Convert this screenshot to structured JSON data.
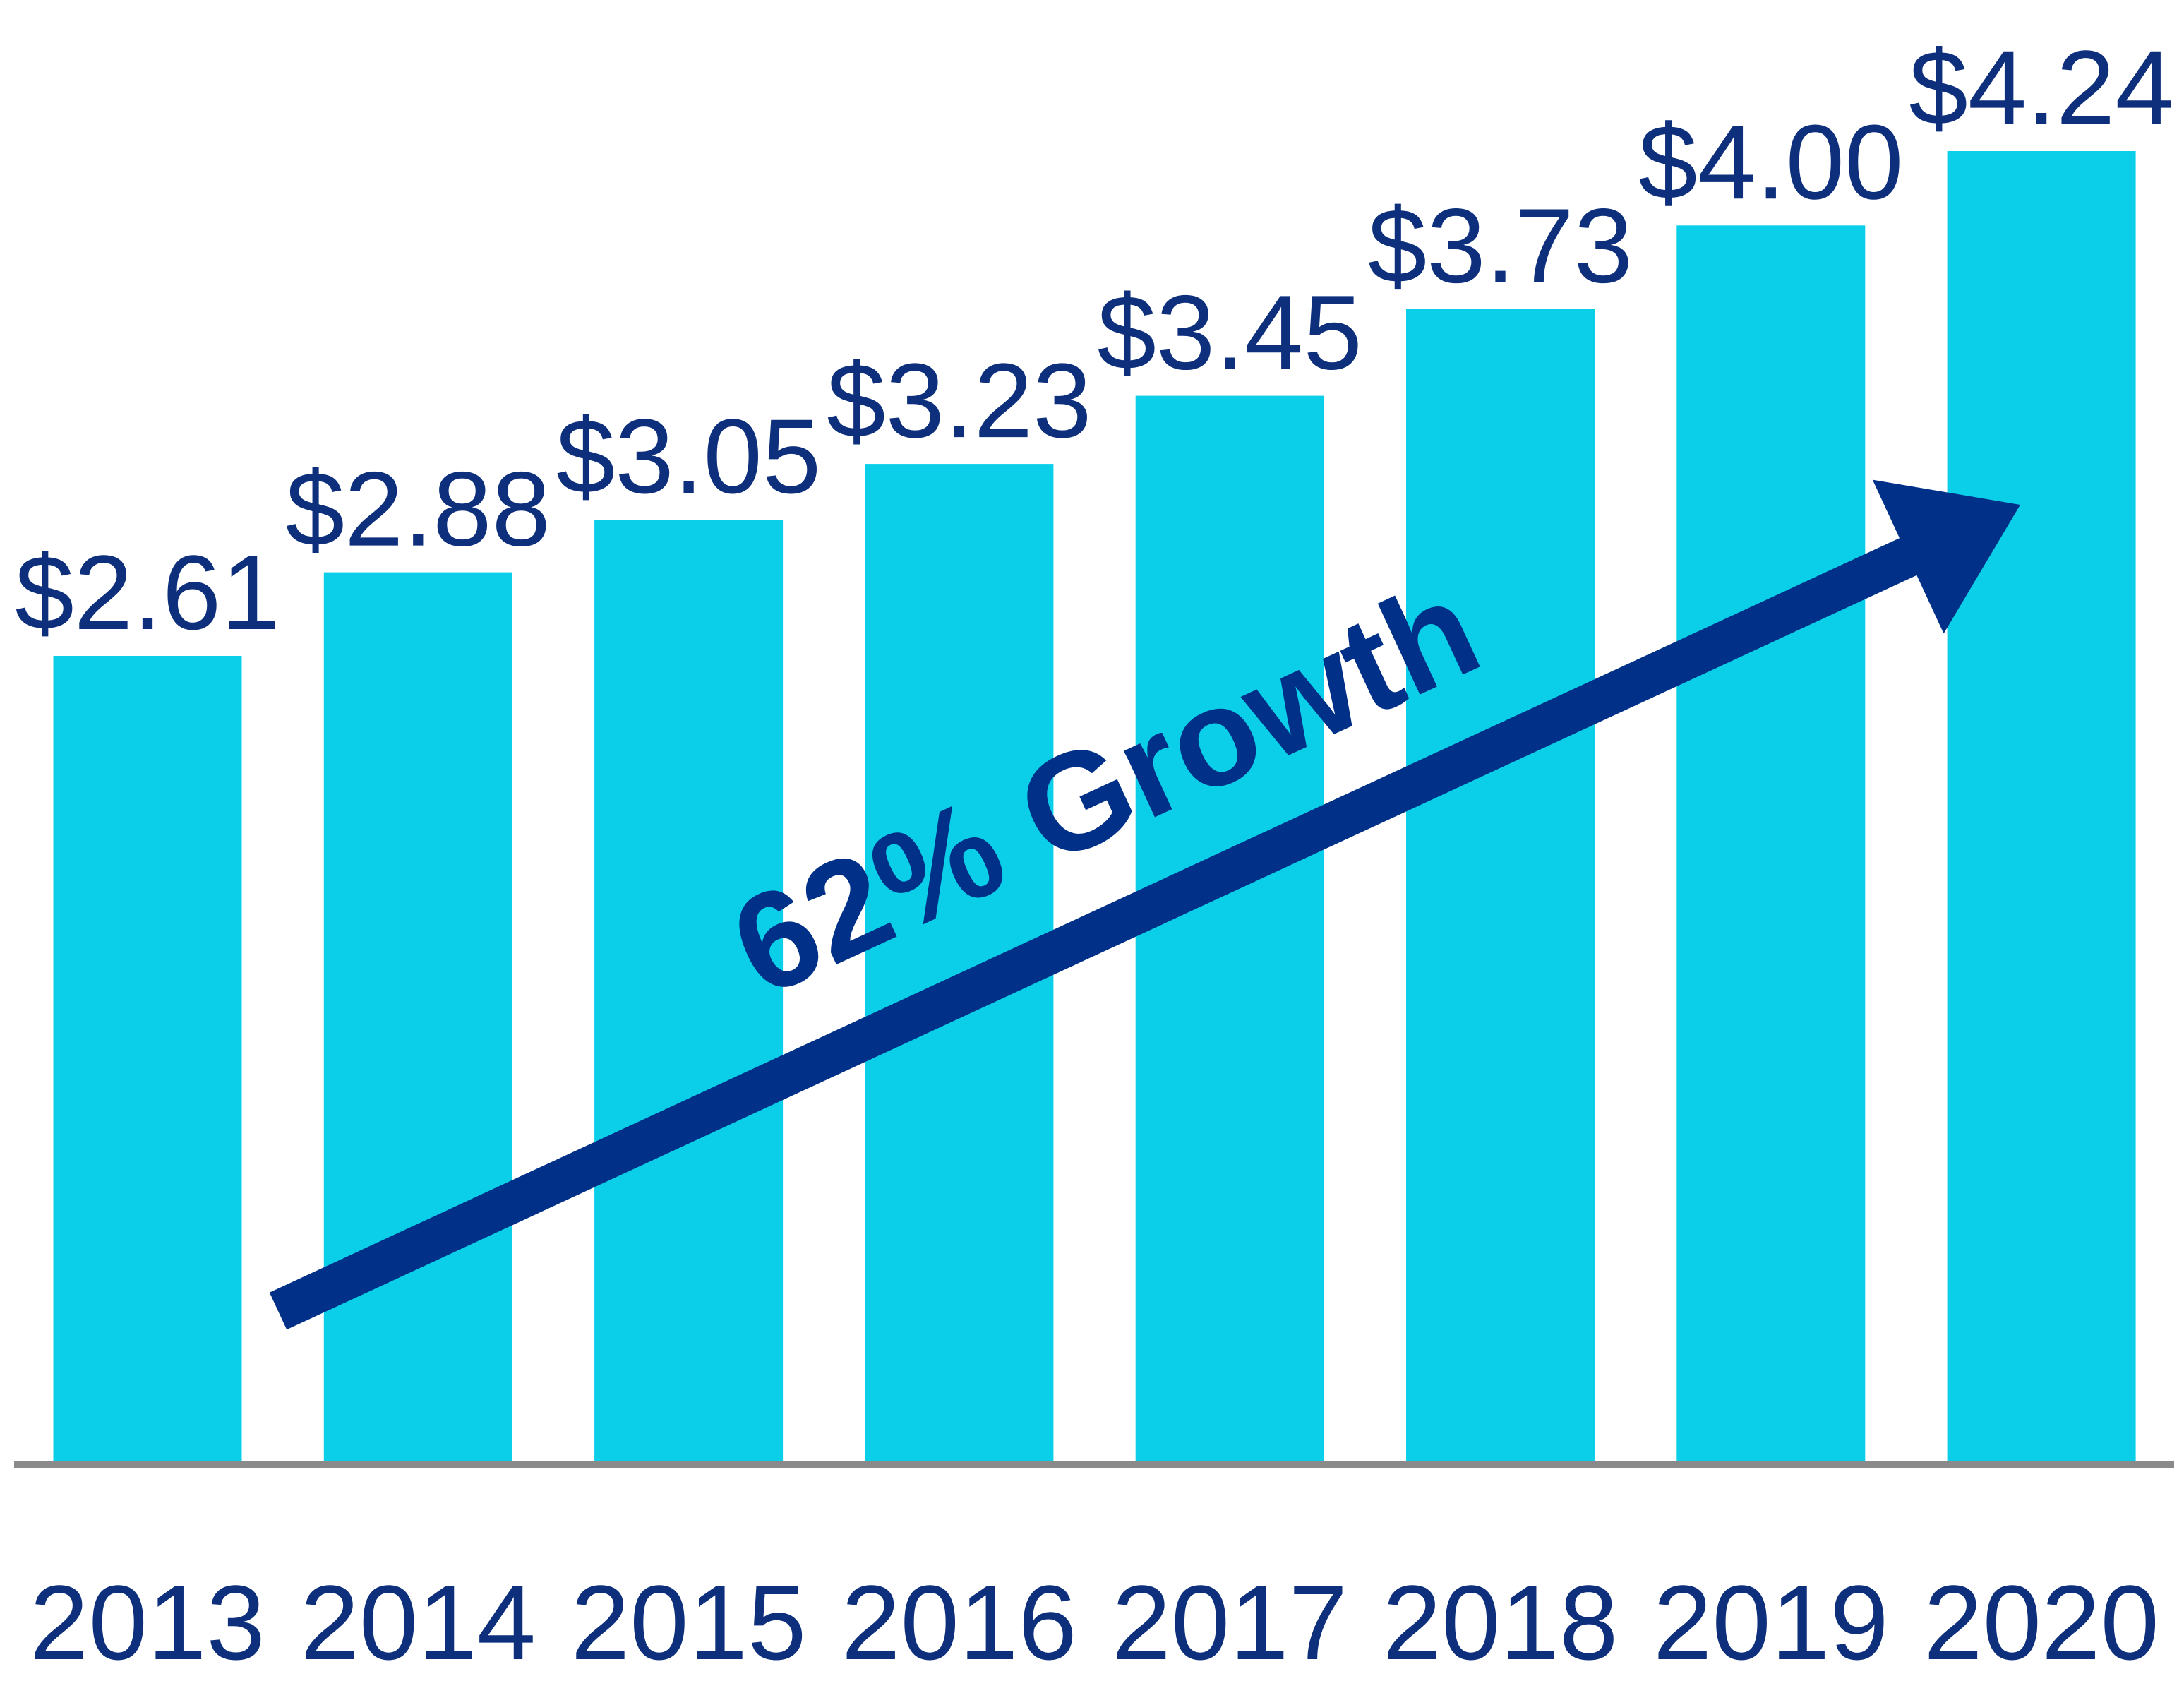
{
  "chart_data": {
    "type": "bar",
    "title": "",
    "xlabel": "",
    "ylabel": "",
    "categories": [
      "2013",
      "2014",
      "2015",
      "2016",
      "2017",
      "2018",
      "2019",
      "2020"
    ],
    "values": [
      2.61,
      2.88,
      3.05,
      3.23,
      3.45,
      3.73,
      4.0,
      4.24
    ],
    "value_labels": [
      "$2.61",
      "$2.88",
      "$3.05",
      "$3.23",
      "$3.45",
      "$3.73",
      "$4.00",
      "$4.24"
    ],
    "ylim": [
      0,
      4.24
    ],
    "grid": false,
    "legend": "none",
    "annotation": {
      "text": "62% Growth",
      "arrow_from_category": "2013",
      "arrow_to_category": "2020"
    },
    "colors": {
      "bar": "#0bcfe9",
      "label": "#0d2f7c",
      "arrow": "#003087",
      "axis": "#8a8a8a"
    }
  }
}
